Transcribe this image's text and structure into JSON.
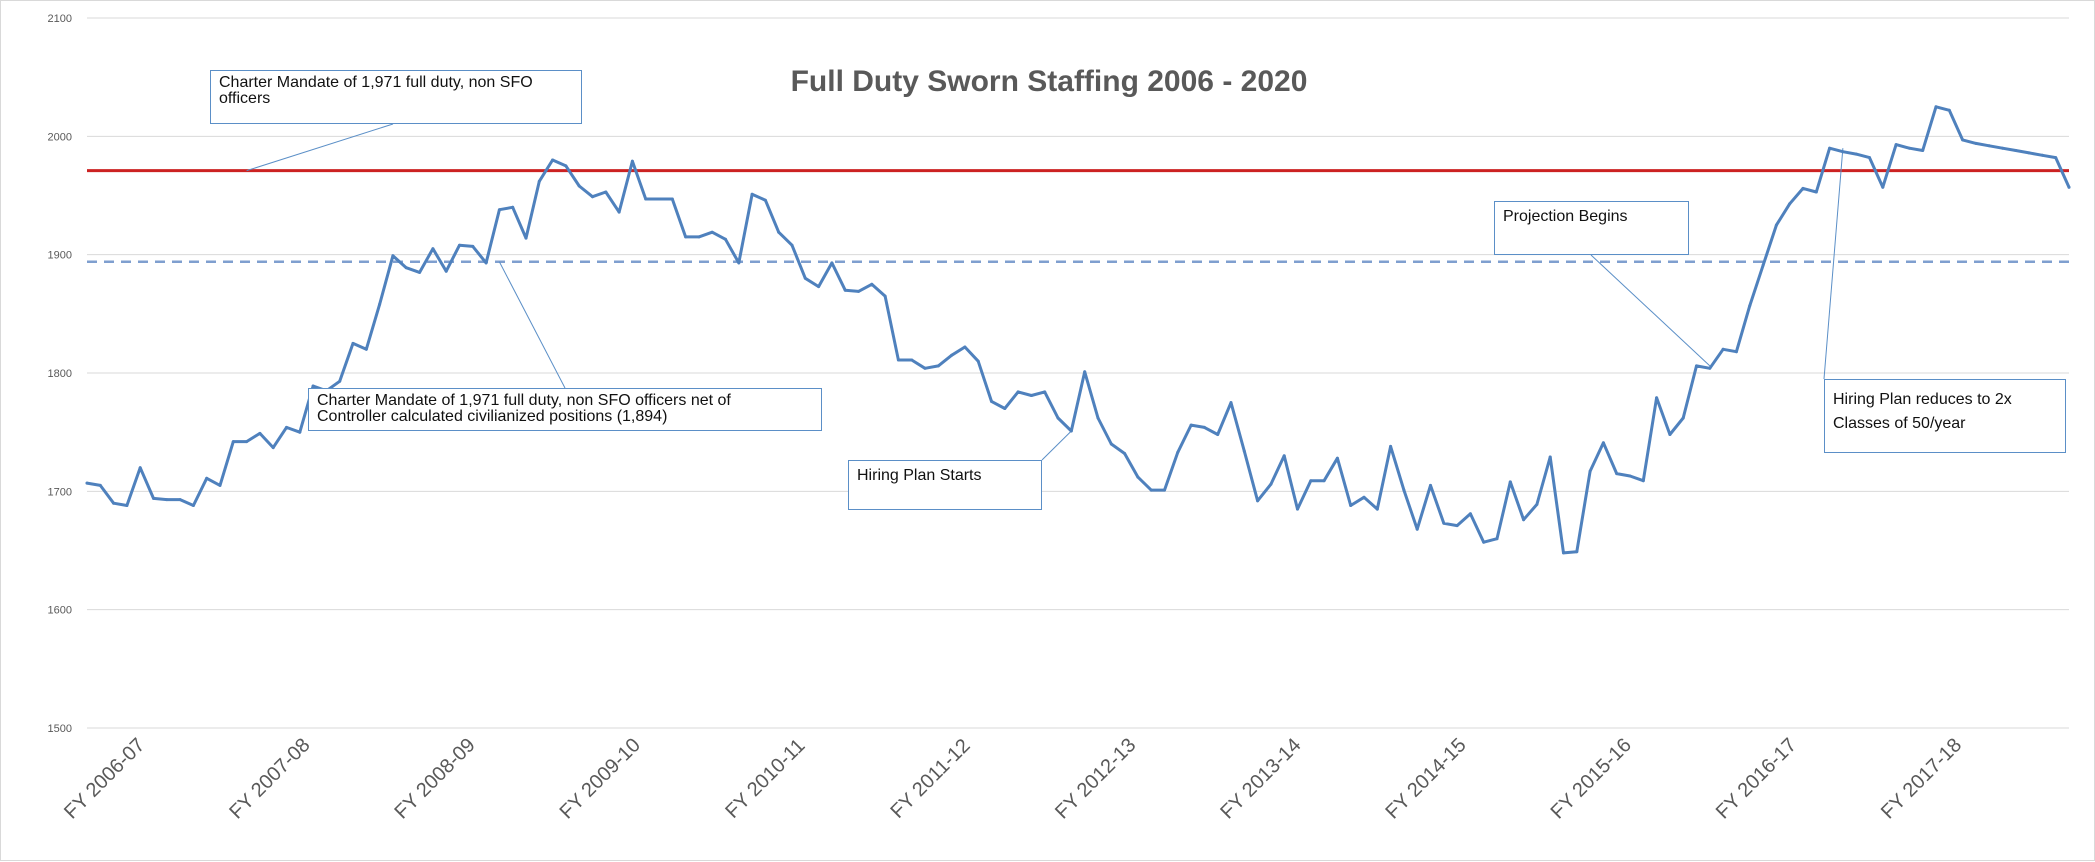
{
  "chart_data": {
    "type": "line",
    "title": "Full Duty Sworn Staffing 2006 - 2020",
    "xlabel": "",
    "ylabel": "",
    "ylim": [
      1500,
      2100
    ],
    "y_ticks": [
      1500,
      1600,
      1700,
      1800,
      1900,
      2000,
      2100
    ],
    "x_tick_labels": [
      "FY 2006-07",
      "FY 2007-08",
      "FY 2008-09",
      "FY 2009-10",
      "FY 2010-11",
      "FY 2011-12",
      "FY 2012-13",
      "FY 2013-14",
      "FY 2014-15",
      "FY 2015-16",
      "FY 2016-17",
      "FY 2017-18"
    ],
    "grid": "horizontal",
    "series": [
      {
        "color": "#4f81bd",
        "values": [
          1707,
          1705,
          1690,
          1688,
          1720,
          1694,
          1693,
          1693,
          1688,
          1711,
          1705,
          1742,
          1742,
          1749,
          1737,
          1754,
          1750,
          1789,
          1785,
          1793,
          1825,
          1820,
          1858,
          1899,
          1889,
          1885,
          1905,
          1886,
          1908,
          1907,
          1893,
          1938,
          1940,
          1914,
          1962,
          1980,
          1975,
          1958,
          1949,
          1953,
          1936,
          1979,
          1947,
          1947,
          1947,
          1915,
          1915,
          1919,
          1913,
          1893,
          1951,
          1946,
          1919,
          1908,
          1880,
          1873,
          1893,
          1870,
          1869,
          1875,
          1865,
          1811,
          1811,
          1804,
          1806,
          1815,
          1822,
          1810,
          1776,
          1770,
          1784,
          1781,
          1784,
          1762,
          1751,
          1801,
          1762,
          1740,
          1732,
          1712,
          1701,
          1701,
          1733,
          1756,
          1754,
          1748,
          1775,
          1734,
          1692,
          1706,
          1730,
          1685,
          1709,
          1709,
          1728,
          1688,
          1695,
          1685,
          1738,
          1701,
          1668,
          1705,
          1673,
          1671,
          1681,
          1657,
          1660,
          1708,
          1676,
          1689,
          1729,
          1648,
          1649,
          1717,
          1741,
          1715,
          1713,
          1709,
          1779,
          1748,
          1762,
          1806,
          1804,
          1820,
          1818,
          1857,
          1891,
          1925,
          1943,
          1956,
          1953,
          1990,
          1987,
          1985,
          1982,
          1957,
          1993,
          1990,
          1988,
          2025,
          2022,
          1997,
          1994,
          1992,
          1990,
          1988,
          1986,
          1984,
          1982,
          1957
        ]
      }
    ],
    "reference_lines": [
      {
        "name": "Charter Mandate of 1,971 full duty, non SFO officers",
        "value": 1971,
        "color": "#cc2222",
        "style": "solid"
      },
      {
        "name": "Charter Mandate of 1,971 full duty, non SFO officers net of Controller calculated civilianized positions (1,894)",
        "value": 1894,
        "color": "#7f9fcf",
        "style": "dashed"
      }
    ],
    "annotations": [
      {
        "id": "charter",
        "line1": "Charter Mandate of 1,971 full duty, non SFO",
        "line2": "officers",
        "points_to": {
          "x_index": 12,
          "y": 1971
        }
      },
      {
        "id": "charter-net",
        "line1": "Charter Mandate of 1,971 full duty, non SFO officers net of",
        "line2": "Controller calculated civilianized positions (1,894)",
        "points_to": {
          "x_index": 31,
          "y": 1894
        }
      },
      {
        "id": "hiring-starts",
        "line1": "Hiring Plan Starts",
        "line2": "",
        "points_to": {
          "x_index": 74,
          "y": 1751
        }
      },
      {
        "id": "projection",
        "line1": "Projection Begins",
        "line2": "",
        "points_to": {
          "x_index": 122,
          "y": 1806
        }
      },
      {
        "id": "reduces",
        "line1": "Hiring Plan reduces to 2x",
        "line2": "Classes of 50/year",
        "points_to": {
          "x_index": 132,
          "y": 1990
        }
      }
    ]
  }
}
